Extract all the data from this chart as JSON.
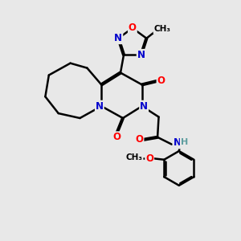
{
  "background_color": "#e8e8e8",
  "atom_colors": {
    "C": "#000000",
    "N": "#0000cc",
    "O": "#ff0000",
    "H": "#5f9ea0"
  },
  "bond_color": "#000000",
  "bond_width": 1.8,
  "figsize": [
    3.0,
    3.0
  ],
  "dpi": 100
}
